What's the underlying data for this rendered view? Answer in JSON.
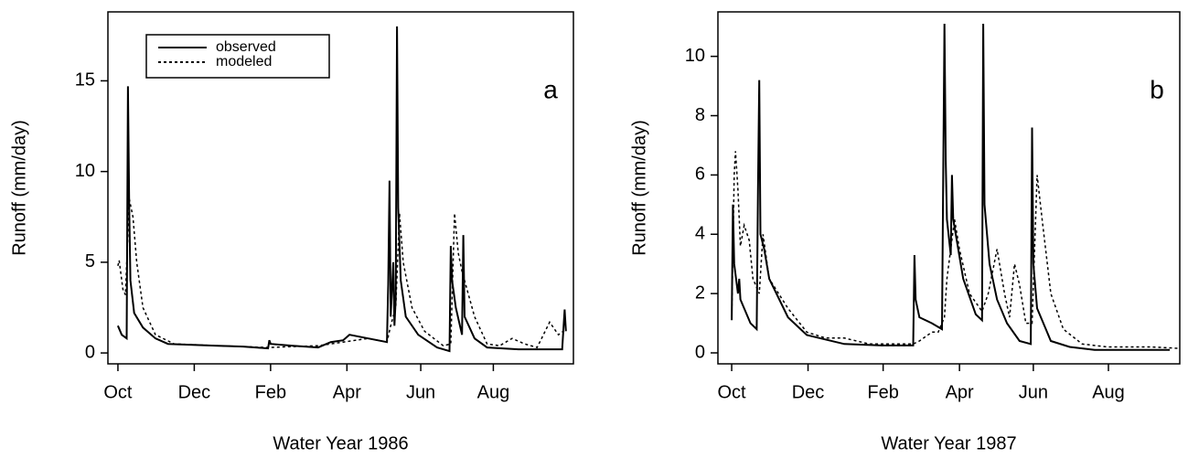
{
  "chart_data": [
    {
      "type": "line",
      "xlabel": "Water Year 1986",
      "ylabel": "Runoff (mm/day)",
      "annotation": "a",
      "xlim": [
        -8,
        364
      ],
      "ylim": [
        -0.6,
        18.8
      ],
      "yticks": [
        0,
        5,
        10,
        15
      ],
      "xticks": [
        {
          "value": 0,
          "label": "Oct"
        },
        {
          "value": 61,
          "label": "Dec"
        },
        {
          "value": 122,
          "label": "Feb"
        },
        {
          "value": 183,
          "label": "Apr"
        },
        {
          "value": 242,
          "label": "Jun"
        },
        {
          "value": 300,
          "label": "Aug"
        }
      ],
      "legend": true,
      "series": [
        {
          "name": "observed",
          "color": "#000000",
          "style": "solid",
          "x": [
            0,
            3,
            7,
            8,
            9,
            10,
            13,
            20,
            30,
            40,
            60,
            80,
            100,
            120,
            121,
            122,
            140,
            160,
            170,
            180,
            185,
            200,
            215,
            216,
            217,
            218,
            220,
            221,
            222,
            223,
            224,
            226,
            230,
            240,
            255,
            265,
            266,
            267,
            270,
            275,
            276,
            277,
            285,
            295,
            320,
            355,
            357,
            358
          ],
          "values": [
            1.5,
            1.0,
            0.8,
            14.7,
            8,
            4,
            2.2,
            1.4,
            0.8,
            0.5,
            0.45,
            0.4,
            0.35,
            0.25,
            0.7,
            0.5,
            0.4,
            0.3,
            0.6,
            0.7,
            1.0,
            0.8,
            0.6,
            3.8,
            9.5,
            2.0,
            5.0,
            1.5,
            3.0,
            18.0,
            8.0,
            4.0,
            2.0,
            1.0,
            0.3,
            0.1,
            5.9,
            4.0,
            2.5,
            1.0,
            6.5,
            2.0,
            0.8,
            0.3,
            0.2,
            0.2,
            2.4,
            1.2
          ]
        },
        {
          "name": "modeled",
          "color": "#000000",
          "style": "dotted",
          "x": [
            0,
            1,
            4,
            6,
            9,
            12,
            15,
            20,
            30,
            45,
            80,
            120,
            140,
            160,
            180,
            200,
            215,
            218,
            222,
            225,
            228,
            235,
            245,
            260,
            266,
            269,
            272,
            275,
            285,
            295,
            305,
            315,
            325,
            335,
            345,
            352,
            358
          ],
          "values": [
            4.8,
            5.1,
            3.5,
            3.2,
            8.5,
            7.5,
            5,
            2.5,
            1.0,
            0.5,
            0.4,
            0.3,
            0.35,
            0.4,
            0.6,
            0.8,
            0.6,
            1.5,
            2.5,
            7.7,
            5,
            2.5,
            1.2,
            0.4,
            0.5,
            7.7,
            5.5,
            4.5,
            2,
            0.5,
            0.4,
            0.8,
            0.5,
            0.3,
            1.7,
            1.0,
            1.3
          ]
        }
      ]
    },
    {
      "type": "line",
      "xlabel": "Water Year 1987",
      "ylabel": "Runoff (mm/day)",
      "annotation": "b",
      "xlim": [
        -11,
        358
      ],
      "ylim": [
        -0.37,
        11.5
      ],
      "yticks": [
        0,
        2,
        4,
        6,
        8,
        10
      ],
      "xticks": [
        {
          "value": 0,
          "label": "Oct"
        },
        {
          "value": 61,
          "label": "Dec"
        },
        {
          "value": 121,
          "label": "Feb"
        },
        {
          "value": 182,
          "label": "Apr"
        },
        {
          "value": 241,
          "label": "Jun"
        },
        {
          "value": 301,
          "label": "Aug"
        }
      ],
      "legend": false,
      "series": [
        {
          "color": "#000000",
          "style": "solid",
          "x": [
            0,
            1,
            2,
            5,
            6,
            7,
            15,
            20,
            21,
            22,
            23,
            26,
            30,
            45,
            60,
            90,
            120,
            145,
            146,
            147,
            150,
            160,
            168,
            170,
            171,
            172,
            175,
            176,
            177,
            185,
            195,
            200,
            201,
            202,
            206,
            212,
            220,
            230,
            239,
            240,
            241,
            244,
            255,
            270,
            290,
            310,
            335,
            350
          ],
          "values": [
            1.1,
            5.0,
            3.0,
            2.0,
            2.5,
            1.8,
            1.0,
            0.8,
            5.5,
            9.2,
            4,
            3.5,
            2.5,
            1.2,
            0.6,
            0.3,
            0.25,
            0.25,
            3.3,
            1.8,
            1.2,
            1.0,
            0.8,
            11.1,
            6.5,
            4.5,
            3.3,
            6.0,
            4.5,
            2.5,
            1.3,
            1.1,
            11.1,
            5.0,
            3.0,
            1.8,
            1.0,
            0.4,
            0.3,
            7.6,
            3.0,
            1.5,
            0.4,
            0.2,
            0.1,
            0.1,
            0.1,
            0.1
          ]
        },
        {
          "color": "#000000",
          "style": "dotted",
          "x": [
            0,
            2,
            3,
            5,
            7,
            10,
            14,
            17,
            22,
            25,
            30,
            45,
            60,
            75,
            90,
            110,
            145,
            150,
            160,
            165,
            170,
            172,
            178,
            182,
            190,
            200,
            205,
            212,
            218,
            222,
            226,
            230,
            235,
            240,
            244,
            248,
            255,
            265,
            280,
            300,
            320,
            335,
            358
          ],
          "values": [
            1.2,
            6.0,
            6.8,
            5.5,
            3.6,
            4.3,
            3.8,
            2.5,
            2.0,
            4.0,
            2.5,
            1.5,
            0.7,
            0.5,
            0.5,
            0.3,
            0.3,
            0.4,
            0.7,
            0.7,
            1.2,
            2.5,
            4.5,
            3.5,
            2.0,
            1.4,
            2.0,
            3.5,
            2.0,
            1.2,
            3.0,
            2.3,
            1.0,
            1.0,
            6.0,
            4.5,
            2.0,
            0.8,
            0.3,
            0.2,
            0.2,
            0.2,
            0.15
          ]
        }
      ]
    }
  ]
}
